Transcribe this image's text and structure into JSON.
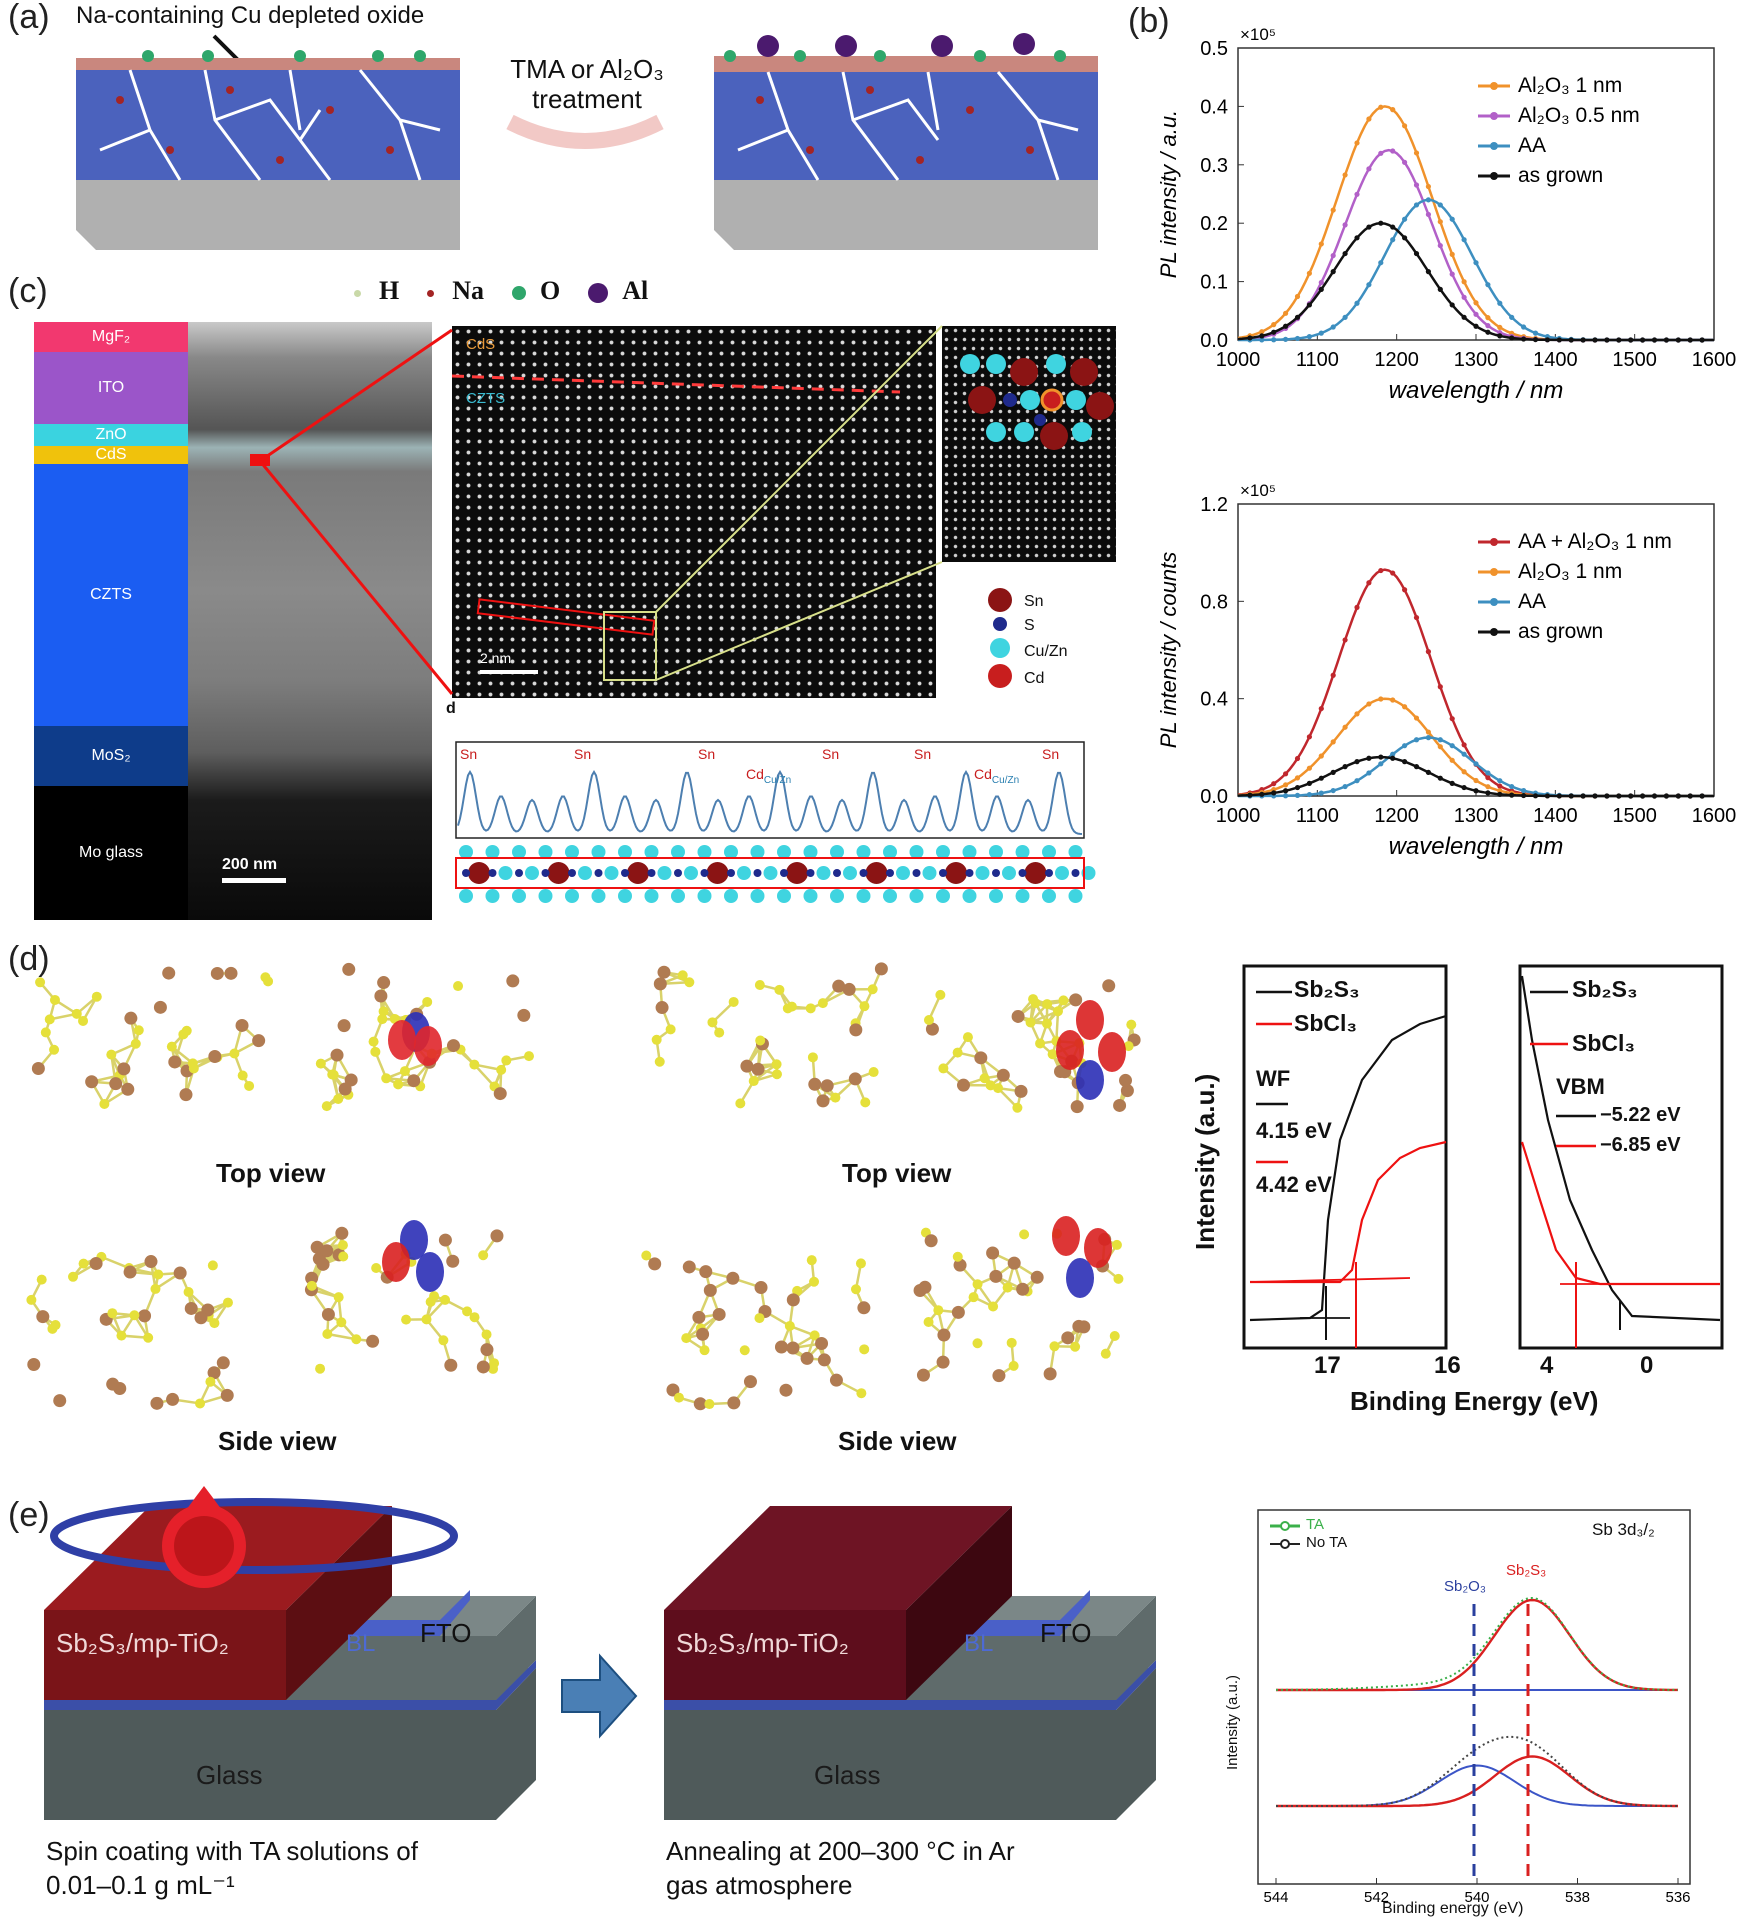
{
  "colors": {
    "orange": "#f0922b",
    "purple": "#b260c8",
    "teal": "#3d8fc0",
    "black": "#111111",
    "red": "#c0272d",
    "green": "#3bb04a",
    "sn_red": "#8b1414",
    "s_blue": "#1f2a8c",
    "cuzn_cyan": "#3fd4e0",
    "cd_red": "#c81e1e",
    "sb_brown": "#b07b52",
    "s_yellow": "#e5e03a"
  },
  "panel_a": {
    "label": "(a)",
    "annotation": "Na-containing Cu depleted oxide",
    "treatment_line1": "TMA or Al₂O₃",
    "treatment_line2": "treatment",
    "legend": [
      {
        "symbol": "H",
        "color": "#c9d9a8"
      },
      {
        "symbol": "Na",
        "color": "#a32424"
      },
      {
        "symbol": "O",
        "color": "#2fa66b"
      },
      {
        "symbol": "Al",
        "color": "#4b1a6e"
      }
    ]
  },
  "panel_b": {
    "label": "(b)"
  },
  "panel_c": {
    "label": "(c)",
    "layers": [
      "MgF₂",
      "ITO",
      "ZnO",
      "CdS",
      "CZTS",
      "MoS₂",
      "Mo glass"
    ],
    "scale_tem": "200 nm",
    "hrtem_top": "CdS",
    "hrtem_bottom": "CZTS",
    "scale_hrtem": "2 nm",
    "sublabel": "d",
    "atom_legend": [
      "Sn",
      "S",
      "Cu/Zn",
      "Cd"
    ],
    "profile_peaks": [
      "Sn",
      "Sn",
      "Sn",
      "Cd",
      "Sn",
      "Sn",
      "Cd",
      "Sn"
    ],
    "cd_subscript": "Cu/Zn"
  },
  "panel_d": {
    "label": "(d)",
    "view_top": "Top view",
    "view_side": "Side view",
    "ups_ylabel": "Intensity (a.u.)",
    "ups_xlabel": "Binding Energy (eV)",
    "left_legend": [
      "Sb₂S₃",
      "SbCl₃"
    ],
    "wf_title": "WF",
    "wf_values": [
      "4.15 eV",
      "4.42 eV"
    ],
    "vbm_title": "VBM",
    "vbm_values": [
      "−5.22 eV",
      "−6.85 eV"
    ],
    "left_ticks": [
      "17",
      "16"
    ],
    "right_ticks": [
      "4",
      "0"
    ]
  },
  "panel_e": {
    "label": "(e)",
    "film": "Sb₂S₃/mp-TiO₂",
    "bl": "BL",
    "fto": "FTO",
    "glass": "Glass",
    "caption1_line1": "Spin coating with TA solutions of",
    "caption1_line2": "0.01–0.1 g mL⁻¹",
    "caption2_line1": "Annealing at 200–300 °C in Ar",
    "caption2_line2": "gas atmosphere",
    "xps_title": "Sb 3d₃/₂",
    "xps_legend": [
      "TA",
      "No TA"
    ],
    "xps_peak1": "Sb₂O₃",
    "xps_peak2": "Sb₂S₃",
    "xps_ylabel": "Intensity (a.u.)",
    "xps_xlabel": "Binding energy (eV)"
  },
  "chart_data": [
    {
      "type": "line",
      "title": "",
      "xlabel": "wavelength / nm",
      "ylabel": "PL intensity / a.u.",
      "multiplier": "×10⁵",
      "xlim": [
        1000,
        1600
      ],
      "ylim": [
        0,
        0.5
      ],
      "xticks": [
        "1000",
        "1100",
        "1200",
        "1300",
        "1400",
        "1500",
        "1600"
      ],
      "yticks": [
        "0.0",
        "0.1",
        "0.2",
        "0.3",
        "0.4",
        "0.5"
      ],
      "legend_position": "top-right",
      "series": [
        {
          "name": "Al₂O₃ 1 nm",
          "color": "#f0922b",
          "peak": 1185,
          "height": 0.4,
          "width": 60
        },
        {
          "name": "Al₂O₃ 0.5 nm",
          "color": "#b260c8",
          "peak": 1190,
          "height": 0.325,
          "width": 55
        },
        {
          "name": "AA",
          "color": "#3d8fc0",
          "peak": 1240,
          "height": 0.24,
          "width": 55
        },
        {
          "name": "as grown",
          "color": "#111111",
          "peak": 1180,
          "height": 0.2,
          "width": 58
        }
      ]
    },
    {
      "type": "line",
      "title": "",
      "xlabel": "wavelength / nm",
      "ylabel": "PL intensity / counts",
      "multiplier": "×10⁵",
      "xlim": [
        1000,
        1600
      ],
      "ylim": [
        0,
        1.2
      ],
      "xticks": [
        "1000",
        "1100",
        "1200",
        "1300",
        "1400",
        "1500",
        "1600"
      ],
      "yticks": [
        "0.0",
        "0.4",
        "0.8",
        "1.2"
      ],
      "legend_position": "top-right",
      "series": [
        {
          "name": "AA + Al₂O₃ 1 nm",
          "color": "#c0272d",
          "peak": 1185,
          "height": 0.93,
          "width": 58
        },
        {
          "name": "Al₂O₃ 1 nm",
          "color": "#f0922b",
          "peak": 1185,
          "height": 0.4,
          "width": 60
        },
        {
          "name": "AA",
          "color": "#3d8fc0",
          "peak": 1240,
          "height": 0.24,
          "width": 55
        },
        {
          "name": "as grown",
          "color": "#111111",
          "peak": 1180,
          "height": 0.16,
          "width": 60
        }
      ]
    },
    {
      "type": "line",
      "title": "Sb 3d₃/₂",
      "xlabel": "Binding energy (eV)",
      "ylabel": "Intensity (a.u.)",
      "xlim": [
        544,
        536
      ],
      "xticks": [
        "544",
        "542",
        "540",
        "538",
        "536"
      ],
      "series": [
        {
          "name": "TA",
          "components": [
            {
              "label": "Sb₂S₃",
              "center": 538.9,
              "height": 1.0
            },
            {
              "label": "Sb₂O₃",
              "center": 540.0,
              "height": 0.0
            }
          ]
        },
        {
          "name": "No TA",
          "components": [
            {
              "label": "Sb₂S₃",
              "center": 538.9,
              "height": 0.55
            },
            {
              "label": "Sb₂O₃",
              "center": 540.0,
              "height": 0.45
            }
          ]
        }
      ]
    }
  ]
}
